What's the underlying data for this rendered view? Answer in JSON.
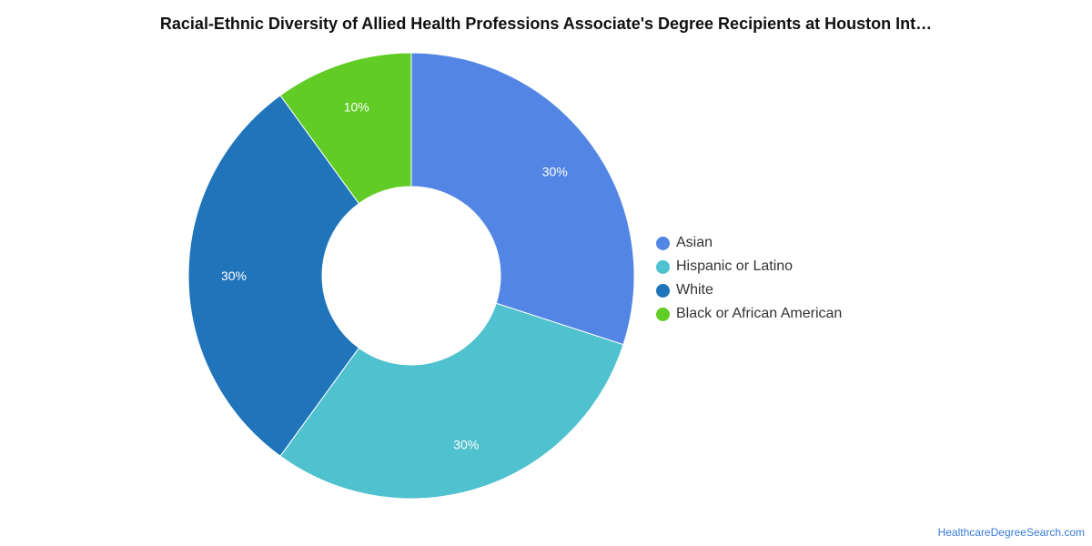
{
  "chart_data": {
    "type": "pie",
    "title": "Racial-Ethnic Diversity of Allied Health Professions Associate's Degree Recipients at Houston Int…",
    "donut": true,
    "categories": [
      "Asian",
      "Hispanic or Latino",
      "White",
      "Black or African American"
    ],
    "values": [
      30,
      30,
      30,
      10
    ],
    "labels": [
      "30%",
      "30%",
      "30%",
      "10%"
    ],
    "colors": [
      "#5386E4",
      "#4FC1CF",
      "#1F74BA",
      "#62CC26"
    ],
    "legend_position": "right"
  },
  "footer": {
    "source": "HealthcareDegreeSearch.com"
  }
}
